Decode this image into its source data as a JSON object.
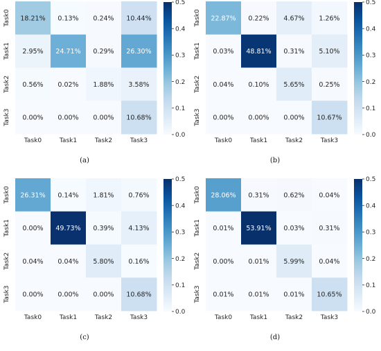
{
  "colors": {
    "colormap": "Blues",
    "low": "#f7fbff",
    "high": "#08306b",
    "text_dark": "#262626",
    "text_light": "#ffffff"
  },
  "chart_data": [
    {
      "type": "heatmap",
      "caption": "(a)",
      "x_labels": [
        "Task0",
        "Task1",
        "Task2",
        "Task3"
      ],
      "y_labels": [
        "Task0",
        "Task1",
        "Task2",
        "Task3"
      ],
      "cells": [
        [
          "18.21%",
          "0.13%",
          "0.24%",
          "10.44%"
        ],
        [
          "2.95%",
          "24.71%",
          "0.29%",
          "26.30%"
        ],
        [
          "0.56%",
          "0.02%",
          "1.88%",
          "3.58%"
        ],
        [
          "0.00%",
          "0.00%",
          "0.00%",
          "10.68%"
        ]
      ],
      "color_range": [
        0,
        0.5
      ],
      "colorbar_ticks": [
        "0.0",
        "0.1",
        "0.2",
        "0.3",
        "0.4",
        "0.5"
      ]
    },
    {
      "type": "heatmap",
      "caption": "(b)",
      "x_labels": [
        "Task0",
        "Task1",
        "Task2",
        "Task3"
      ],
      "y_labels": [
        "Task0",
        "Task1",
        "Task2",
        "Task3"
      ],
      "cells": [
        [
          "22.87%",
          "0.22%",
          "4.67%",
          "1.26%"
        ],
        [
          "0.03%",
          "48.81%",
          "0.31%",
          "5.10%"
        ],
        [
          "0.04%",
          "0.10%",
          "5.65%",
          "0.25%"
        ],
        [
          "0.00%",
          "0.00%",
          "0.00%",
          "10.67%"
        ]
      ],
      "color_range": [
        0,
        0.5
      ],
      "colorbar_ticks": [
        "0.0",
        "0.1",
        "0.2",
        "0.3",
        "0.4",
        "0.5"
      ]
    },
    {
      "type": "heatmap",
      "caption": "(c)",
      "x_labels": [
        "Task0",
        "Task1",
        "Task2",
        "Task3"
      ],
      "y_labels": [
        "Task0",
        "Task1",
        "Task2",
        "Task3"
      ],
      "cells": [
        [
          "26.31%",
          "0.14%",
          "1.81%",
          "0.76%"
        ],
        [
          "0.00%",
          "49.73%",
          "0.39%",
          "4.13%"
        ],
        [
          "0.04%",
          "0.04%",
          "5.80%",
          "0.16%"
        ],
        [
          "0.00%",
          "0.00%",
          "0.00%",
          "10.68%"
        ]
      ],
      "color_range": [
        0,
        0.5
      ],
      "colorbar_ticks": [
        "0.0",
        "0.1",
        "0.2",
        "0.3",
        "0.4",
        "0.5"
      ]
    },
    {
      "type": "heatmap",
      "caption": "(d)",
      "x_labels": [
        "Task0",
        "Task1",
        "Task2",
        "Task3"
      ],
      "y_labels": [
        "Task0",
        "Task1",
        "Task2",
        "Task3"
      ],
      "cells": [
        [
          "28.06%",
          "0.31%",
          "0.62%",
          "0.04%"
        ],
        [
          "0.01%",
          "53.91%",
          "0.03%",
          "0.31%"
        ],
        [
          "0.00%",
          "0.01%",
          "5.99%",
          "0.04%"
        ],
        [
          "0.01%",
          "0.01%",
          "0.01%",
          "10.65%"
        ]
      ],
      "color_range": [
        0,
        0.5
      ],
      "colorbar_ticks": [
        "0.0",
        "0.1",
        "0.2",
        "0.3",
        "0.4",
        "0.5"
      ]
    }
  ]
}
